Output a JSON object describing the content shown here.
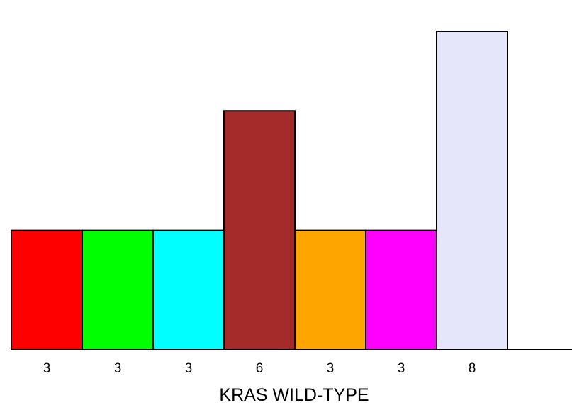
{
  "chart_data": {
    "type": "bar",
    "categories": [
      "",
      "",
      "",
      "",
      "",
      "",
      ""
    ],
    "values": [
      3,
      3,
      3,
      6,
      3,
      3,
      8
    ],
    "value_labels": [
      "3",
      "3",
      "3",
      "6",
      "3",
      "3",
      "8"
    ],
    "colors": [
      "#ff0000",
      "#00ff00",
      "#00ffff",
      "#a52a2a",
      "#ffa500",
      "#ff00ff",
      "#e6e6fa"
    ],
    "title": "",
    "xlabel": "KRAS WILD-TYPE",
    "ylabel": "",
    "ylim": [
      0,
      8
    ],
    "grid": false,
    "legend": "none"
  }
}
